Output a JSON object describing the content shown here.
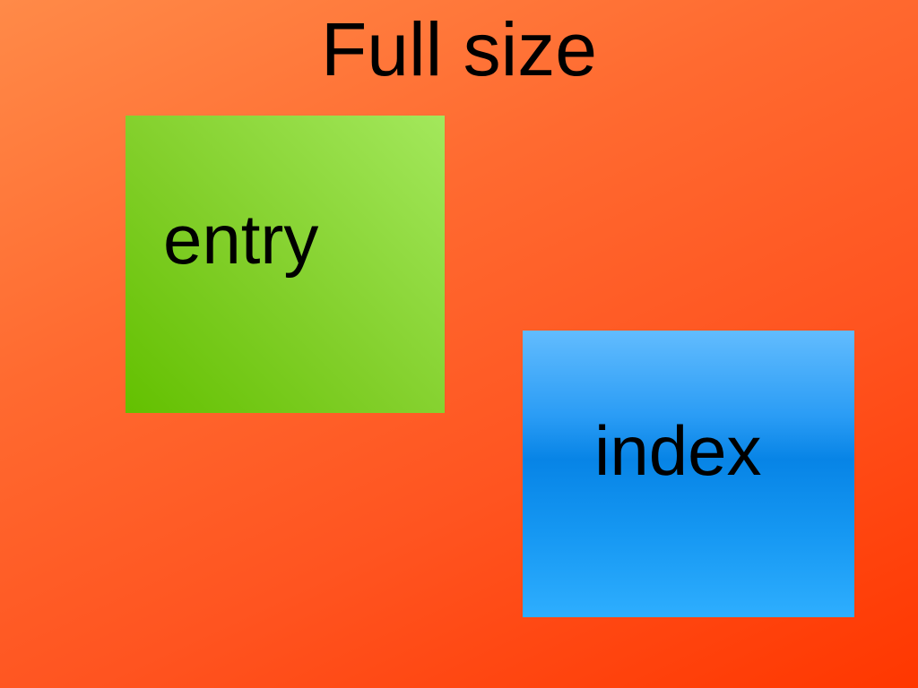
{
  "title": "Full size",
  "nodes": [
    {
      "label": "entry",
      "color": "#82cf2a"
    },
    {
      "label": "index",
      "color": "#0784e6"
    }
  ],
  "colors": {
    "background": "#ff5a20",
    "text": "#000000"
  }
}
